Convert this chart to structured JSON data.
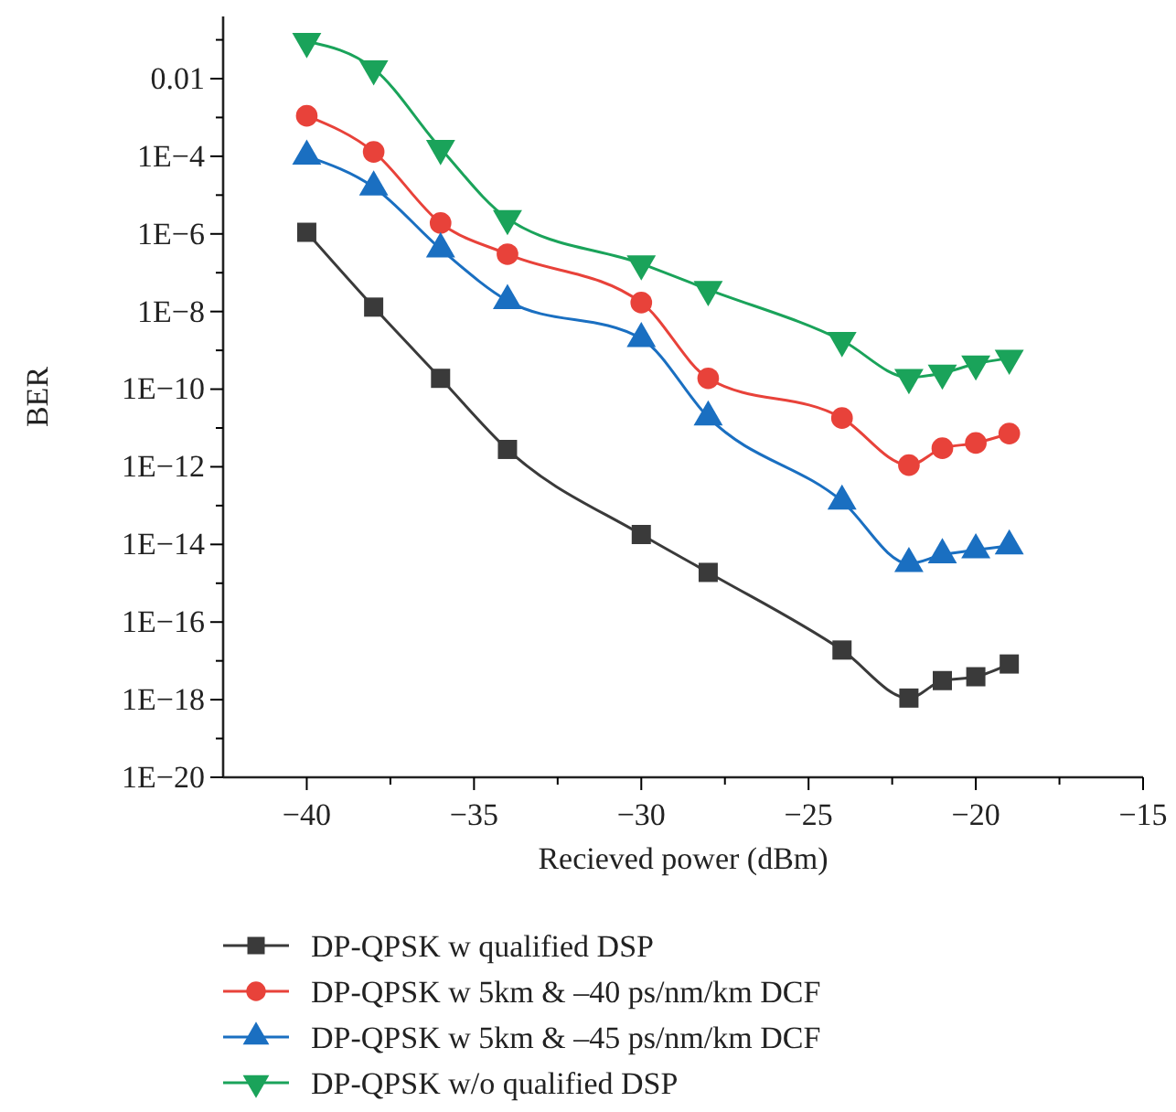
{
  "chart_data": {
    "type": "line",
    "xlabel": "Recieved power (dBm)",
    "ylabel": "BER",
    "log": "y",
    "legend": "bottom",
    "grid": false,
    "x": [
      -40,
      -38,
      -36,
      -34,
      -30,
      -28,
      -24,
      -22,
      -21,
      -20,
      -19
    ],
    "xlim": [
      -42.5,
      -15
    ],
    "xticks": [
      -40,
      {
        "value": -37.5,
        "label": null
      },
      -35,
      {
        "value": -32.5,
        "label": null
      },
      -30,
      {
        "value": -27.5,
        "label": null
      },
      -25,
      {
        "value": -22.5,
        "label": null
      },
      -20,
      {
        "value": -17.5,
        "label": null
      },
      -15
    ],
    "ylim": [
      1e-20,
      0.4
    ],
    "yticks": [
      {
        "value": 1e-20,
        "label": "1E−20"
      },
      {
        "value": 1e-19,
        "label": null
      },
      {
        "value": 1e-18,
        "label": "1E−18"
      },
      {
        "value": 1e-17,
        "label": null
      },
      {
        "value": 1e-16,
        "label": "1E−16"
      },
      {
        "value": 1e-15,
        "label": null
      },
      {
        "value": 1e-14,
        "label": "1E−14"
      },
      {
        "value": 1e-13,
        "label": null
      },
      {
        "value": 1e-12,
        "label": "1E−12"
      },
      {
        "value": 1e-11,
        "label": null
      },
      {
        "value": 1e-10,
        "label": "1E−10"
      },
      {
        "value": 1e-09,
        "label": null
      },
      {
        "value": 1e-08,
        "label": "1E−8"
      },
      {
        "value": 1e-07,
        "label": null
      },
      {
        "value": 1e-06,
        "label": "1E−6"
      },
      {
        "value": 1e-05,
        "label": null
      },
      {
        "value": 0.0001,
        "label": "1E−4"
      },
      {
        "value": 0.001,
        "label": null
      },
      {
        "value": 0.01,
        "label": "0.01"
      },
      {
        "value": 0.1,
        "label": null
      }
    ],
    "series": [
      {
        "name": "DP-QPSK w qualified DSP",
        "color": "#3a3a3a",
        "marker": "square",
        "values": [
          1.1e-06,
          1.3e-08,
          1.9e-10,
          2.8e-12,
          1.8e-14,
          1.9e-15,
          1.9e-17,
          1.1e-18,
          3.1e-18,
          3.9e-18,
          8.3e-18
        ]
      },
      {
        "name": "DP-QPSK w 5km & –40 ps/nm/km DCF",
        "color": "#e8423a",
        "marker": "circle",
        "values": [
          0.0011,
          0.00013,
          1.9e-06,
          3e-07,
          1.7e-08,
          1.9e-10,
          1.8e-11,
          1.1e-12,
          3e-12,
          4.1e-12,
          7.2e-12
        ]
      },
      {
        "name": "DP-QPSK w 5km & –45 ps/nm/km DCF",
        "color": "#1a6fc1",
        "marker": "triangle",
        "values": [
          0.0001,
          1.6e-05,
          4.1e-07,
          1.9e-08,
          2e-09,
          1.9e-11,
          1.3e-13,
          3.2e-15,
          5.4e-15,
          7.2e-15,
          9.1e-15
        ]
      },
      {
        "name": "DP-QPSK w/o qualified DSP",
        "color": "#1aa35a",
        "marker": "triangle-down",
        "values": [
          0.091,
          0.018,
          0.00016,
          2.5e-06,
          1.7e-07,
          3.7e-08,
          1.8e-09,
          2e-10,
          2.6e-10,
          4.5e-10,
          6.3e-10
        ]
      }
    ]
  }
}
